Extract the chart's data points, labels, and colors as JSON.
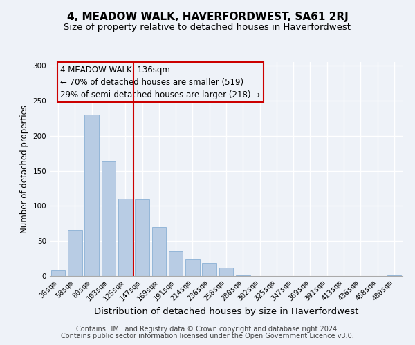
{
  "title": "4, MEADOW WALK, HAVERFORDWEST, SA61 2RJ",
  "subtitle": "Size of property relative to detached houses in Haverfordwest",
  "xlabel": "Distribution of detached houses by size in Haverfordwest",
  "ylabel": "Number of detached properties",
  "bar_labels": [
    "36sqm",
    "58sqm",
    "80sqm",
    "103sqm",
    "125sqm",
    "147sqm",
    "169sqm",
    "191sqm",
    "214sqm",
    "236sqm",
    "258sqm",
    "280sqm",
    "302sqm",
    "325sqm",
    "347sqm",
    "369sqm",
    "391sqm",
    "413sqm",
    "436sqm",
    "458sqm",
    "480sqm"
  ],
  "bar_values": [
    8,
    65,
    230,
    163,
    110,
    109,
    70,
    35,
    24,
    19,
    12,
    1,
    0,
    0,
    0,
    0,
    0,
    0,
    0,
    0,
    1
  ],
  "bar_color": "#b8cce4",
  "bar_edge_color": "#8ab0d4",
  "vline_color": "#cc0000",
  "vline_pos": 4.5,
  "annotation_text_line1": "4 MEADOW WALK: 136sqm",
  "annotation_text_line2": "← 70% of detached houses are smaller (519)",
  "annotation_text_line3": "29% of semi-detached houses are larger (218) →",
  "ylim": [
    0,
    305
  ],
  "yticks": [
    0,
    50,
    100,
    150,
    200,
    250,
    300
  ],
  "footer_line1": "Contains HM Land Registry data © Crown copyright and database right 2024.",
  "footer_line2": "Contains public sector information licensed under the Open Government Licence v3.0.",
  "background_color": "#eef2f8",
  "grid_color": "#ffffff",
  "title_fontsize": 11,
  "subtitle_fontsize": 9.5,
  "xlabel_fontsize": 9.5,
  "ylabel_fontsize": 8.5,
  "tick_fontsize": 7.5,
  "annotation_fontsize": 8.5,
  "footer_fontsize": 7
}
